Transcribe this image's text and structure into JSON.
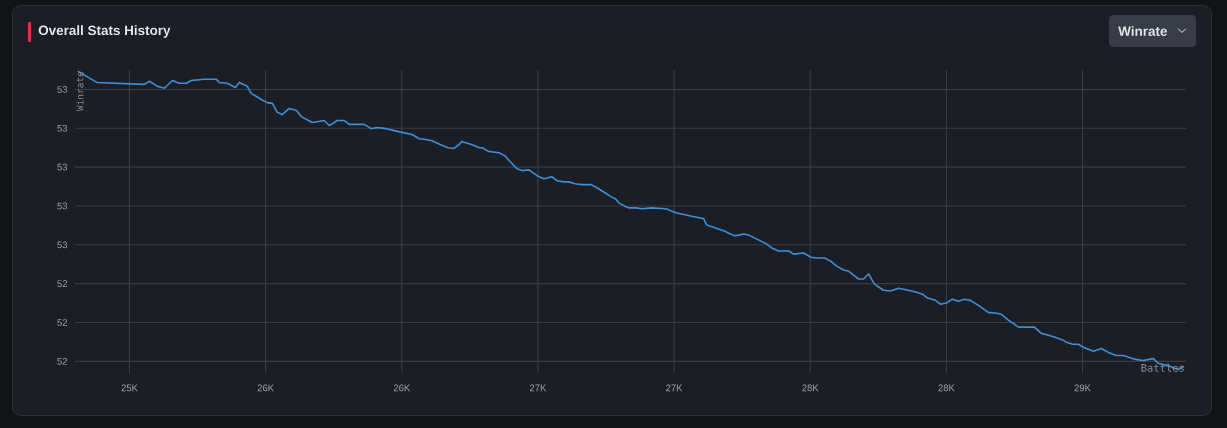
{
  "chart_data": {
    "type": "line",
    "title": "Overall Stats History",
    "xlabel": "Battles",
    "ylabel": "Winrate",
    "annotations": [
      "Winrate"
    ],
    "color": "#3f8fd8",
    "grid": true,
    "xlim": [
      24800,
      28880
    ],
    "ylim": [
      52.17,
      52.95
    ],
    "xticks": [
      {
        "value": 25000,
        "label": "25K"
      },
      {
        "value": 25500,
        "label": "26K"
      },
      {
        "value": 26000,
        "label": "26K"
      },
      {
        "value": 26500,
        "label": "27K"
      },
      {
        "value": 27000,
        "label": "27K"
      },
      {
        "value": 27500,
        "label": "28K"
      },
      {
        "value": 28000,
        "label": "28K"
      },
      {
        "value": 28500,
        "label": "29K"
      }
    ],
    "yticks": [
      {
        "value": 52.2,
        "label": "52"
      },
      {
        "value": 52.3,
        "label": "52"
      },
      {
        "value": 52.4,
        "label": "52"
      },
      {
        "value": 52.5,
        "label": "53"
      },
      {
        "value": 52.6,
        "label": "53"
      },
      {
        "value": 52.7,
        "label": "53"
      },
      {
        "value": 52.8,
        "label": "53"
      },
      {
        "value": 52.9,
        "label": "53"
      }
    ],
    "x": [
      24810,
      24880,
      25055,
      25073,
      25103,
      25128,
      25158,
      25183,
      25209,
      25227,
      25275,
      25319,
      25330,
      25359,
      25389,
      25403,
      25433,
      25447,
      25484,
      25506,
      25525,
      25543,
      25561,
      25587,
      25613,
      25631,
      25671,
      25715,
      25734,
      25763,
      25789,
      25807,
      25862,
      25888,
      25910,
      25943,
      25972,
      26038,
      26064,
      26089,
      26111,
      26141,
      26170,
      26192,
      26210,
      26221,
      26269,
      26284,
      26295,
      26320,
      26357,
      26379,
      26394,
      26423,
      26442,
      26467,
      26497,
      26522,
      26552,
      26570,
      26596,
      26614,
      26636,
      26662,
      26695,
      26717,
      26746,
      26768,
      26786,
      26797,
      26823,
      26834,
      26860,
      26882,
      26918,
      26970,
      27010,
      27061,
      27098,
      27109,
      27120,
      27182,
      27201,
      27223,
      27256,
      27274,
      27340,
      27359,
      27384,
      27421,
      27439,
      27476,
      27502,
      27524,
      27553,
      27575,
      27597,
      27623,
      27641,
      27659,
      27678,
      27696,
      27714,
      27736,
      27769,
      27795,
      27824,
      27872,
      27890,
      27912,
      27931,
      27960,
      27978,
      28000,
      28022,
      28044,
      28066,
      28088,
      28118,
      28154,
      28184,
      28202,
      28228,
      28265,
      28301,
      28323,
      28349,
      28375,
      28400,
      28430,
      28441,
      28463,
      28485,
      28503,
      28540,
      28569,
      28595,
      28624,
      28650,
      28672,
      28694,
      28723,
      28760,
      28778,
      28822,
      28851,
      28873
    ],
    "values": [
      52.947,
      52.918,
      52.913,
      52.921,
      52.908,
      52.903,
      52.923,
      52.916,
      52.916,
      52.923,
      52.926,
      52.926,
      52.918,
      52.916,
      52.905,
      52.918,
      52.908,
      52.89,
      52.874,
      52.866,
      52.864,
      52.841,
      52.835,
      52.851,
      52.846,
      52.83,
      52.815,
      52.82,
      52.807,
      52.82,
      52.82,
      52.81,
      52.81,
      52.799,
      52.802,
      52.799,
      52.794,
      52.784,
      52.773,
      52.771,
      52.768,
      52.758,
      52.75,
      52.748,
      52.758,
      52.766,
      52.755,
      52.75,
      52.75,
      52.74,
      52.737,
      52.729,
      52.717,
      52.696,
      52.691,
      52.693,
      52.678,
      52.67,
      52.675,
      52.665,
      52.662,
      52.662,
      52.657,
      52.655,
      52.655,
      52.647,
      52.634,
      52.624,
      52.618,
      52.608,
      52.598,
      52.595,
      52.595,
      52.593,
      52.595,
      52.593,
      52.582,
      52.574,
      52.569,
      52.567,
      52.551,
      52.536,
      52.53,
      52.523,
      52.528,
      52.525,
      52.502,
      52.492,
      52.484,
      52.484,
      52.476,
      52.479,
      52.468,
      52.466,
      52.466,
      52.458,
      52.445,
      52.435,
      52.432,
      52.422,
      52.412,
      52.412,
      52.425,
      52.399,
      52.383,
      52.381,
      52.388,
      52.381,
      52.378,
      52.373,
      52.363,
      52.357,
      52.347,
      52.35,
      52.36,
      52.355,
      52.36,
      52.357,
      52.344,
      52.326,
      52.324,
      52.321,
      52.306,
      52.288,
      52.288,
      52.288,
      52.272,
      52.267,
      52.262,
      52.254,
      52.249,
      52.244,
      52.244,
      52.236,
      52.226,
      52.233,
      52.223,
      52.215,
      52.215,
      52.21,
      52.205,
      52.202,
      52.207,
      52.195,
      52.187,
      52.179,
      52.187
    ]
  }
}
